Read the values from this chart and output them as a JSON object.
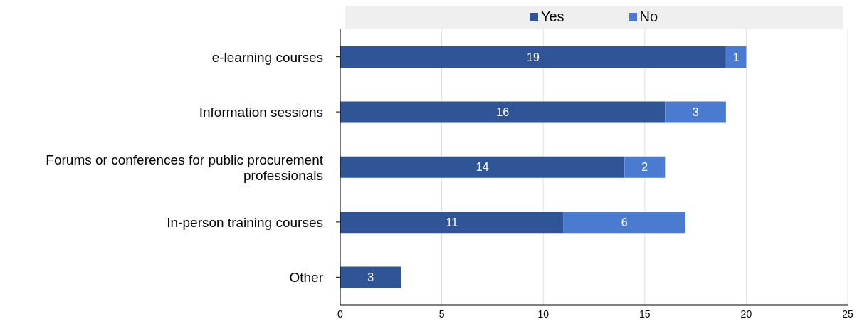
{
  "chart_data": {
    "type": "bar",
    "orientation": "horizontal",
    "stacked": true,
    "categories": [
      "e-learning courses",
      "Information sessions",
      "Forums or conferences for public procurement professionals",
      "In-person training courses",
      "Other"
    ],
    "series": [
      {
        "name": "Yes",
        "color": "#2f5597",
        "values": [
          19,
          16,
          14,
          11,
          3
        ]
      },
      {
        "name": "No",
        "color": "#4a7bd0",
        "values": [
          1,
          3,
          2,
          6,
          null
        ]
      }
    ],
    "xlim": [
      0,
      25
    ],
    "xticks": [
      0,
      5,
      10,
      15,
      20,
      25
    ],
    "grid": "x",
    "legend": "top",
    "data_labels": true
  }
}
